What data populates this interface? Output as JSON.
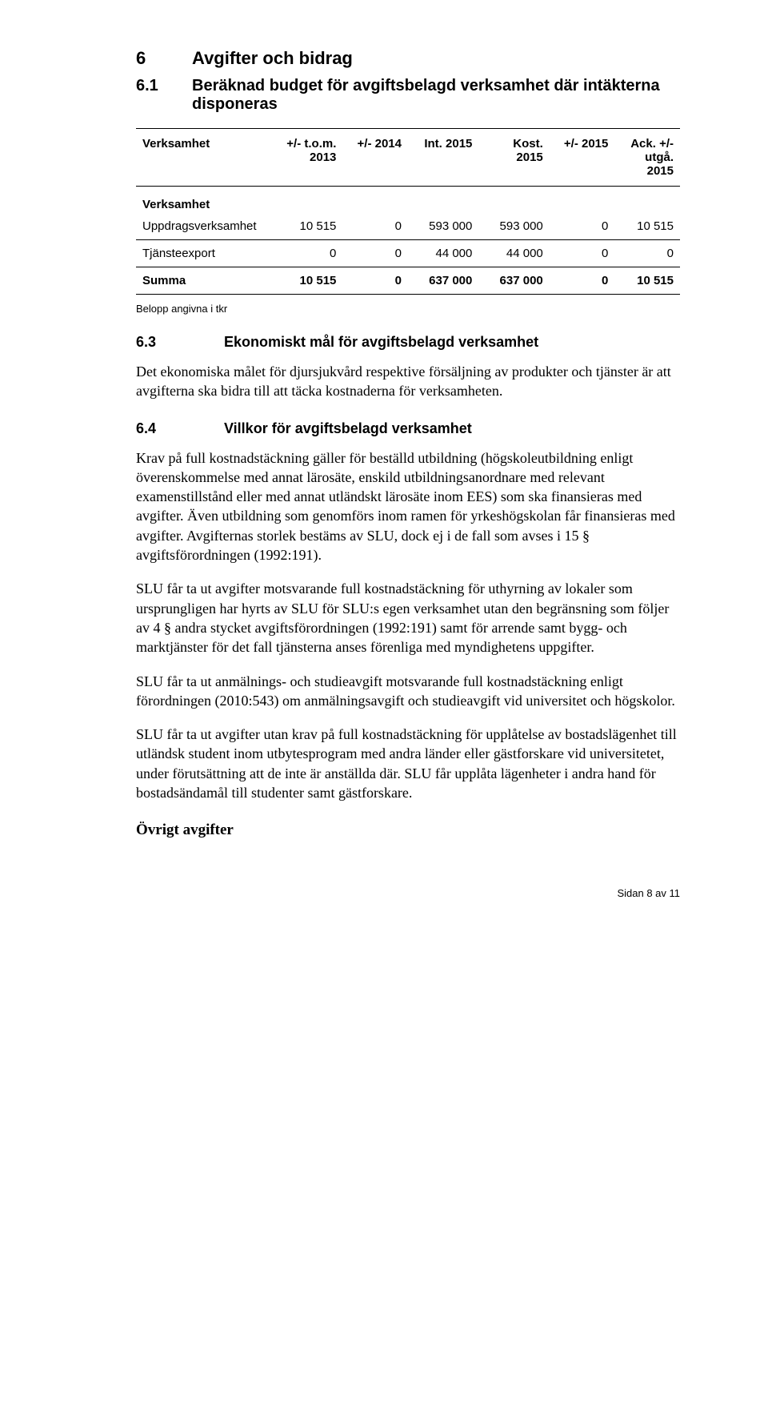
{
  "section6": {
    "num": "6",
    "title": "Avgifter och bidrag"
  },
  "section61": {
    "num": "6.1",
    "title": "Beräknad budget för avgiftsbelagd verksamhet där intäkterna disponeras"
  },
  "table": {
    "columns": [
      {
        "label": "Verksamhet",
        "align": "left"
      },
      {
        "label": "+/- t.o.m. 2013",
        "align": "right"
      },
      {
        "label": "+/- 2014",
        "align": "right"
      },
      {
        "label": "Int. 2015",
        "align": "right"
      },
      {
        "label": "Kost. 2015",
        "align": "right"
      },
      {
        "label": "+/- 2015",
        "align": "right"
      },
      {
        "label": "Ack. +/- utgå. 2015",
        "align": "right"
      }
    ],
    "section_label": "Verksamhet",
    "rows": [
      {
        "cells": [
          "Uppdragsverksamhet",
          "10 515",
          "0",
          "593 000",
          "593 000",
          "0",
          "10 515"
        ]
      },
      {
        "cells": [
          "Tjänsteexport",
          "0",
          "0",
          "44 000",
          "44 000",
          "0",
          "0"
        ]
      }
    ],
    "sum_row": {
      "cells": [
        "Summa",
        "10 515",
        "0",
        "637 000",
        "637 000",
        "0",
        "10 515"
      ]
    },
    "footnote": "Belopp angivna i tkr",
    "col_widths": [
      "26%",
      "12%",
      "12%",
      "13%",
      "13%",
      "12%",
      "12%"
    ]
  },
  "section63": {
    "num": "6.3",
    "title": "Ekonomiskt mål för avgiftsbelagd verksamhet",
    "body": "Det ekonomiska målet för djursjukvård respektive försäljning av produkter och tjänster är att avgifterna ska bidra till att täcka kostnaderna för verksamheten."
  },
  "section64": {
    "num": "6.4",
    "title": "Villkor för avgiftsbelagd verksamhet",
    "p1": "Krav på full kostnadstäckning gäller för beställd utbildning (högskoleutbildning enligt överenskommelse med annat lärosäte, enskild utbildningsanordnare med relevant examenstillstånd eller med annat utländskt lärosäte inom EES) som ska finansieras med avgifter. Även utbildning som genomförs inom ramen för yrkeshögskolan får finansieras med avgifter. Avgifternas storlek bestäms av SLU, dock ej i de fall som avses i 15 § avgiftsförordningen (1992:191).",
    "p2": "SLU får ta ut avgifter motsvarande full kostnadstäckning för uthyrning av lokaler som ursprungligen har hyrts av SLU för SLU:s egen verksamhet utan den begränsning som följer av 4 § andra stycket avgiftsförordningen (1992:191) samt för arrende samt bygg- och marktjänster för det fall tjänsterna anses förenliga med myndighetens uppgifter.",
    "p3": "SLU får ta ut anmälnings- och studieavgift motsvarande full kostnadstäckning enligt förordningen (2010:543) om anmälningsavgift och studieavgift vid universitet och högskolor.",
    "p4": "SLU får ta ut avgifter utan krav på  full kostnadstäckning för upplåtelse av bostadslägenhet till utländsk student inom utbytesprogram med andra länder eller gästforskare vid universitetet, under förutsättning att de inte är anställda där. SLU får  upplåta lägenheter i andra hand för bostadsändamål till studenter samt gästforskare."
  },
  "ovrigt": {
    "title": "Övrigt avgifter"
  },
  "footer": {
    "text": "Sidan 8 av 11"
  }
}
